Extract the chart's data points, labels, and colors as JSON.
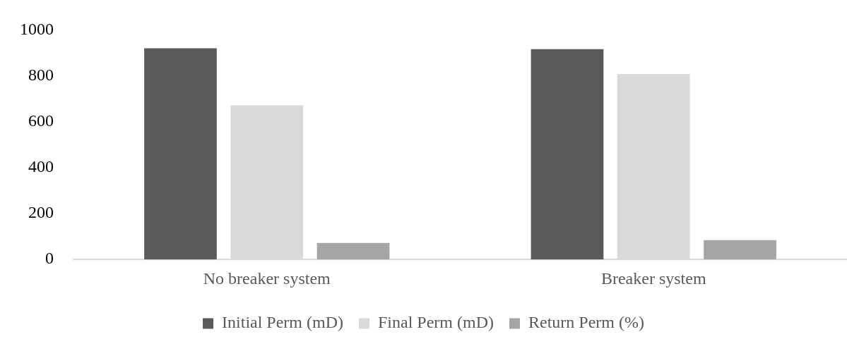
{
  "chart_data": {
    "type": "bar",
    "categories": [
      "No breaker system",
      "Breaker system"
    ],
    "series": [
      {
        "name": "Initial Perm (mD)",
        "color": "#595959",
        "values": [
          920,
          916
        ]
      },
      {
        "name": "Final Perm (mD)",
        "color": "#d9d9d9",
        "values": [
          671,
          808
        ]
      },
      {
        "name": "Return Perm (%)",
        "color": "#a5a5a5",
        "values": [
          72,
          84
        ]
      }
    ],
    "ylim": [
      0,
      1000
    ],
    "yticks": [
      0,
      200,
      400,
      600,
      800,
      1000
    ],
    "grid": false,
    "legend": "bottom"
  }
}
